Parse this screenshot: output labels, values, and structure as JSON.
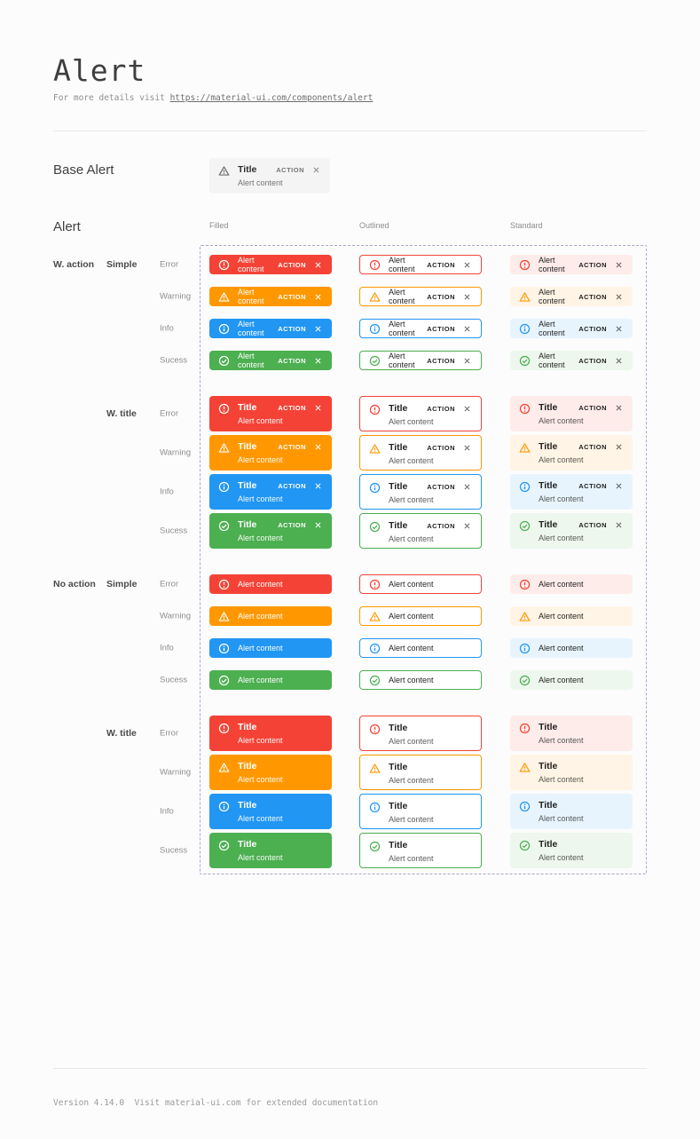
{
  "page": {
    "title": "Alert",
    "subtitle_prefix": "For more details visit ",
    "subtitle_link": "https://material-ui.com/components/alert",
    "footer": "Version 4.14.0  Visit material-ui.com for extended documentation"
  },
  "base_alert": {
    "section_label": "Base Alert",
    "title": "Title",
    "content": "Alert content",
    "action_label": "ACTION"
  },
  "alert_table": {
    "section_label": "Alert",
    "columns": [
      "Filled",
      "Outlined",
      "Standard"
    ],
    "variants": [
      "filled",
      "outlined",
      "standard"
    ],
    "groups": [
      {
        "action_label": "W. action",
        "type_label": "Simple",
        "with_action": true,
        "with_title": false
      },
      {
        "action_label": "",
        "type_label": "W. title",
        "with_action": true,
        "with_title": true
      },
      {
        "action_label": "No action",
        "type_label": "Simple",
        "with_action": false,
        "with_title": false
      },
      {
        "action_label": "",
        "type_label": "W. title",
        "with_action": false,
        "with_title": true
      }
    ],
    "severities": [
      {
        "key": "error",
        "label": "Error"
      },
      {
        "key": "warning",
        "label": "Warning"
      },
      {
        "key": "info",
        "label": "Info"
      },
      {
        "key": "success",
        "label": "Sucess"
      }
    ],
    "alert_text": {
      "title": "Title",
      "content": "Alert content",
      "action": "ACTION"
    }
  },
  "colors": {
    "error": {
      "main": "#f44336",
      "standard_bg": "#fdecea"
    },
    "warning": {
      "main": "#ff9800",
      "standard_bg": "#fff4e5"
    },
    "info": {
      "main": "#2196f3",
      "standard_bg": "#e8f4fd"
    },
    "success": {
      "main": "#4caf50",
      "standard_bg": "#edf7ed"
    },
    "base_bg": "#f4f4f4",
    "dashed_outline": "#a5aac5"
  }
}
